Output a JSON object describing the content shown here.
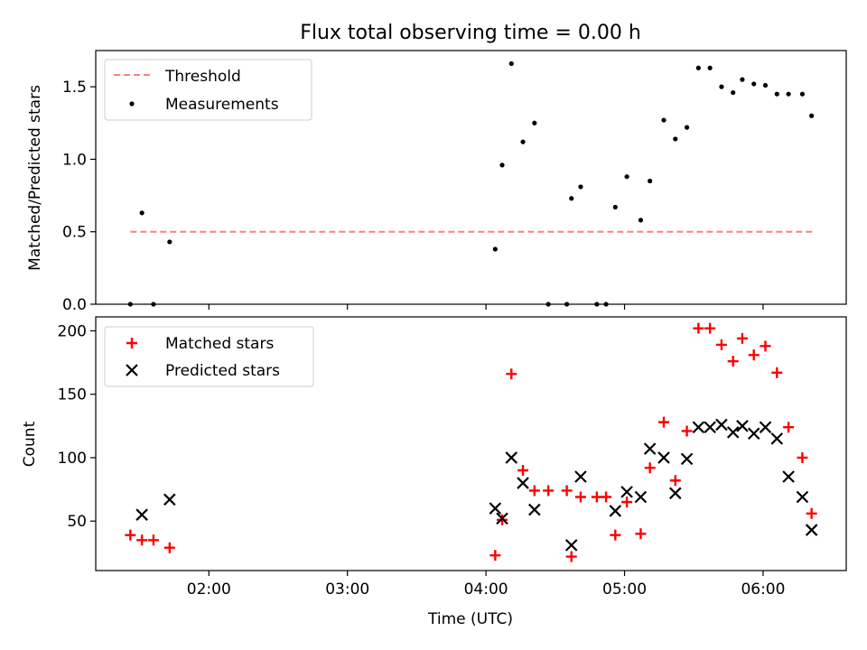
{
  "chart_data": [
    {
      "type": "scatter",
      "title": "Flux total observing time = 0.00 h",
      "xlabel": "",
      "ylabel": "Matched/Predicted stars",
      "x_axis": {
        "type": "time",
        "xlim": [
          "01:11",
          "06:36"
        ],
        "ticks": [
          "02:00",
          "03:00",
          "04:00",
          "05:00",
          "06:00"
        ],
        "ticklabels_shown": false
      },
      "ylim": [
        0,
        1.75
      ],
      "yticks": [
        "0.0",
        "0.5",
        "1.0",
        "1.5"
      ],
      "grid": false,
      "legend_position": "upper left",
      "threshold": {
        "name": "Threshold",
        "style": "dashed",
        "color": "#ff7f7f",
        "y": 0.5,
        "x_range": [
          "01:26",
          "06:22"
        ]
      },
      "series": [
        {
          "name": "Measurements",
          "marker": "dot",
          "color": "#000000",
          "points": [
            {
              "x": "01:26",
              "y": 0.0
            },
            {
              "x": "01:31",
              "y": 0.63
            },
            {
              "x": "01:36",
              "y": 0.0
            },
            {
              "x": "01:43",
              "y": 0.43
            },
            {
              "x": "04:04",
              "y": 0.38
            },
            {
              "x": "04:07",
              "y": 0.96
            },
            {
              "x": "04:11",
              "y": 1.66
            },
            {
              "x": "04:16",
              "y": 1.12
            },
            {
              "x": "04:21",
              "y": 1.25
            },
            {
              "x": "04:27",
              "y": 0.0
            },
            {
              "x": "04:35",
              "y": 0.0
            },
            {
              "x": "04:37",
              "y": 0.73
            },
            {
              "x": "04:41",
              "y": 0.81
            },
            {
              "x": "04:48",
              "y": 0.0
            },
            {
              "x": "04:52",
              "y": 0.0
            },
            {
              "x": "04:56",
              "y": 0.67
            },
            {
              "x": "05:01",
              "y": 0.88
            },
            {
              "x": "05:07",
              "y": 0.58
            },
            {
              "x": "05:11",
              "y": 0.85
            },
            {
              "x": "05:17",
              "y": 1.27
            },
            {
              "x": "05:22",
              "y": 1.14
            },
            {
              "x": "05:27",
              "y": 1.22
            },
            {
              "x": "05:32",
              "y": 1.63
            },
            {
              "x": "05:37",
              "y": 1.63
            },
            {
              "x": "05:42",
              "y": 1.5
            },
            {
              "x": "05:47",
              "y": 1.46
            },
            {
              "x": "05:51",
              "y": 1.55
            },
            {
              "x": "05:56",
              "y": 1.52
            },
            {
              "x": "06:01",
              "y": 1.51
            },
            {
              "x": "06:06",
              "y": 1.45
            },
            {
              "x": "06:11",
              "y": 1.45
            },
            {
              "x": "06:17",
              "y": 1.45
            },
            {
              "x": "06:21",
              "y": 1.3
            }
          ]
        }
      ]
    },
    {
      "type": "scatter",
      "title": "",
      "xlabel": "Time (UTC)",
      "ylabel": "Count",
      "x_axis": {
        "type": "time",
        "xlim": [
          "01:11",
          "06:36"
        ],
        "ticks": [
          "02:00",
          "03:00",
          "04:00",
          "05:00",
          "06:00"
        ],
        "ticklabels_shown": true
      },
      "ylim": [
        11,
        211
      ],
      "yticks": [
        "50",
        "100",
        "150",
        "200"
      ],
      "grid": false,
      "legend_position": "upper left",
      "series": [
        {
          "name": "Matched stars",
          "marker": "plus",
          "color": "#ff0000",
          "points": [
            {
              "x": "01:26",
              "y": 39
            },
            {
              "x": "01:31",
              "y": 35
            },
            {
              "x": "01:36",
              "y": 35
            },
            {
              "x": "01:43",
              "y": 29
            },
            {
              "x": "04:04",
              "y": 23
            },
            {
              "x": "04:07",
              "y": 51
            },
            {
              "x": "04:11",
              "y": 166
            },
            {
              "x": "04:16",
              "y": 90
            },
            {
              "x": "04:21",
              "y": 74
            },
            {
              "x": "04:27",
              "y": 74
            },
            {
              "x": "04:35",
              "y": 74
            },
            {
              "x": "04:37",
              "y": 22
            },
            {
              "x": "04:41",
              "y": 69
            },
            {
              "x": "04:48",
              "y": 69
            },
            {
              "x": "04:52",
              "y": 69
            },
            {
              "x": "04:56",
              "y": 39
            },
            {
              "x": "05:01",
              "y": 65
            },
            {
              "x": "05:07",
              "y": 40
            },
            {
              "x": "05:11",
              "y": 92
            },
            {
              "x": "05:17",
              "y": 128
            },
            {
              "x": "05:22",
              "y": 82
            },
            {
              "x": "05:27",
              "y": 121
            },
            {
              "x": "05:32",
              "y": 202
            },
            {
              "x": "05:37",
              "y": 202
            },
            {
              "x": "05:42",
              "y": 189
            },
            {
              "x": "05:47",
              "y": 176
            },
            {
              "x": "05:51",
              "y": 194
            },
            {
              "x": "05:56",
              "y": 181
            },
            {
              "x": "06:01",
              "y": 188
            },
            {
              "x": "06:06",
              "y": 167
            },
            {
              "x": "06:11",
              "y": 124
            },
            {
              "x": "06:17",
              "y": 100
            },
            {
              "x": "06:21",
              "y": 56
            }
          ]
        },
        {
          "name": "Predicted stars",
          "marker": "x",
          "color": "#000000",
          "points": [
            {
              "x": "01:31",
              "y": 55
            },
            {
              "x": "01:43",
              "y": 67
            },
            {
              "x": "04:04",
              "y": 60
            },
            {
              "x": "04:07",
              "y": 52
            },
            {
              "x": "04:11",
              "y": 100
            },
            {
              "x": "04:16",
              "y": 80
            },
            {
              "x": "04:21",
              "y": 59
            },
            {
              "x": "04:37",
              "y": 31
            },
            {
              "x": "04:41",
              "y": 85
            },
            {
              "x": "04:56",
              "y": 58
            },
            {
              "x": "05:01",
              "y": 73
            },
            {
              "x": "05:07",
              "y": 69
            },
            {
              "x": "05:11",
              "y": 107
            },
            {
              "x": "05:17",
              "y": 100
            },
            {
              "x": "05:22",
              "y": 72
            },
            {
              "x": "05:27",
              "y": 99
            },
            {
              "x": "05:32",
              "y": 124
            },
            {
              "x": "05:37",
              "y": 124
            },
            {
              "x": "05:42",
              "y": 126
            },
            {
              "x": "05:47",
              "y": 120
            },
            {
              "x": "05:51",
              "y": 125
            },
            {
              "x": "05:56",
              "y": 119
            },
            {
              "x": "06:01",
              "y": 124
            },
            {
              "x": "06:06",
              "y": 115
            },
            {
              "x": "06:11",
              "y": 85
            },
            {
              "x": "06:17",
              "y": 69
            },
            {
              "x": "06:21",
              "y": 43
            }
          ]
        }
      ]
    }
  ]
}
